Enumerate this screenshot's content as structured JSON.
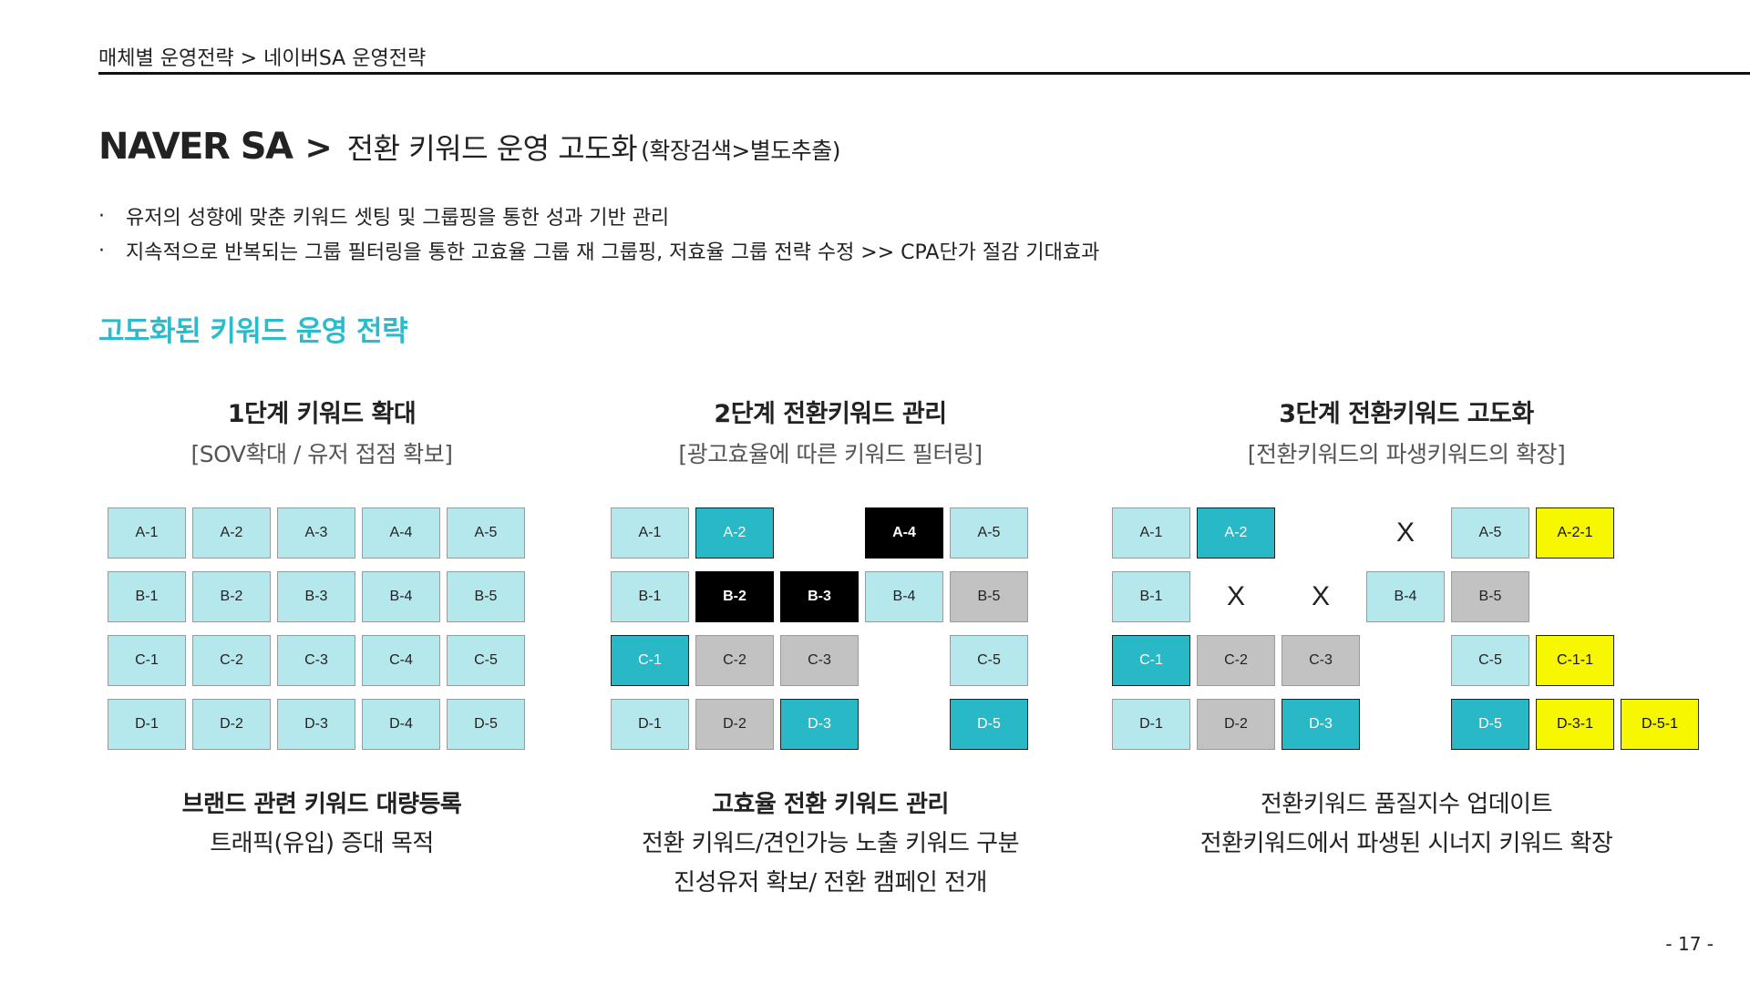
{
  "breadcrumb": "매체별 운영전략 > 네이버SA 운영전략",
  "title": {
    "main": "NAVER SA",
    "separator": ">",
    "sub": "전환 키워드 운영 고도화",
    "paren": "(확장검색>별도추출)"
  },
  "bullets": [
    "유저의 성향에 맞춘 키워드 셋팅 및 그룹핑을 통한 성과 기반 관리",
    "지속적으로 반복되는 그룹 필터링을 통한 고효율 그룹 재 그룹핑, 저효율 그룹 전략 수정 >> CPA단가 절감 기대효과"
  ],
  "bullet_marker": "·",
  "section_heading": "고도화된 키워드 운영 전략",
  "stages": [
    {
      "title": "1단계 키워드 확대",
      "subtitle": "[SOV확대 / 유저 접점 확보]",
      "footer": [
        "브랜드 관련 키워드 대량등록",
        "트래픽(유입) 증대 목적"
      ],
      "cells": [
        {
          "label": "A-1",
          "state": "normal"
        },
        {
          "label": "A-2",
          "state": "normal"
        },
        {
          "label": "A-3",
          "state": "normal"
        },
        {
          "label": "A-4",
          "state": "normal"
        },
        {
          "label": "A-5",
          "state": "normal"
        },
        {
          "label": "B-1",
          "state": "normal"
        },
        {
          "label": "B-2",
          "state": "normal"
        },
        {
          "label": "B-3",
          "state": "normal"
        },
        {
          "label": "B-4",
          "state": "normal"
        },
        {
          "label": "B-5",
          "state": "normal"
        },
        {
          "label": "C-1",
          "state": "normal"
        },
        {
          "label": "C-2",
          "state": "normal"
        },
        {
          "label": "C-3",
          "state": "normal"
        },
        {
          "label": "C-4",
          "state": "normal"
        },
        {
          "label": "C-5",
          "state": "normal"
        },
        {
          "label": "D-1",
          "state": "normal"
        },
        {
          "label": "D-2",
          "state": "normal"
        },
        {
          "label": "D-3",
          "state": "normal"
        },
        {
          "label": "D-4",
          "state": "normal"
        },
        {
          "label": "D-5",
          "state": "normal"
        }
      ]
    },
    {
      "title": "2단계 전환키워드 관리",
      "subtitle": "[광고효율에 따른 키워드 필터링]",
      "footer": [
        "고효율 전환 키워드 관리",
        "전환 키워드/견인가능 노출 키워드 구분",
        "진성유저 확보/ 전환 캠페인 전개"
      ],
      "cells": [
        {
          "label": "A-1",
          "state": "normal"
        },
        {
          "label": "A-2",
          "state": "conversion"
        },
        {
          "label": "",
          "state": "empty"
        },
        {
          "label": "A-4",
          "state": "excluded"
        },
        {
          "label": "A-5",
          "state": "normal"
        },
        {
          "label": "B-1",
          "state": "normal"
        },
        {
          "label": "B-2",
          "state": "excluded"
        },
        {
          "label": "B-3",
          "state": "excluded"
        },
        {
          "label": "B-4",
          "state": "normal"
        },
        {
          "label": "B-5",
          "state": "low"
        },
        {
          "label": "C-1",
          "state": "conversion"
        },
        {
          "label": "C-2",
          "state": "low"
        },
        {
          "label": "C-3",
          "state": "low"
        },
        {
          "label": "",
          "state": "empty"
        },
        {
          "label": "C-5",
          "state": "normal"
        },
        {
          "label": "D-1",
          "state": "normal"
        },
        {
          "label": "D-2",
          "state": "low"
        },
        {
          "label": "D-3",
          "state": "conversion"
        },
        {
          "label": "",
          "state": "empty"
        },
        {
          "label": "D-5",
          "state": "conversion"
        }
      ]
    },
    {
      "title": "3단계 전환키워드 고도화",
      "subtitle": "[전환키워드의 파생키워드의 확장]",
      "footer": [
        "전환키워드 품질지수 업데이트",
        "전환키워드에서 파생된 시너지 키워드 확장"
      ],
      "cells": [
        {
          "label": "A-1",
          "state": "normal"
        },
        {
          "label": "A-2",
          "state": "conversion"
        },
        {
          "label": "",
          "state": "empty"
        },
        {
          "label": "X",
          "state": "removed"
        },
        {
          "label": "A-5",
          "state": "normal"
        },
        {
          "label": "A-2-1",
          "state": "derived"
        },
        {
          "label": "",
          "state": "empty"
        },
        {
          "label": "B-1",
          "state": "normal"
        },
        {
          "label": "X",
          "state": "removed"
        },
        {
          "label": "X",
          "state": "removed"
        },
        {
          "label": "B-4",
          "state": "normal"
        },
        {
          "label": "B-5",
          "state": "low"
        },
        {
          "label": "",
          "state": "empty"
        },
        {
          "label": "",
          "state": "empty"
        },
        {
          "label": "C-1",
          "state": "conversion"
        },
        {
          "label": "C-2",
          "state": "low"
        },
        {
          "label": "C-3",
          "state": "low"
        },
        {
          "label": "",
          "state": "empty"
        },
        {
          "label": "C-5",
          "state": "normal"
        },
        {
          "label": "C-1-1",
          "state": "derived"
        },
        {
          "label": "",
          "state": "empty"
        },
        {
          "label": "D-1",
          "state": "normal"
        },
        {
          "label": "D-2",
          "state": "low"
        },
        {
          "label": "D-3",
          "state": "conversion"
        },
        {
          "label": "",
          "state": "empty"
        },
        {
          "label": "D-5",
          "state": "conversion"
        },
        {
          "label": "D-3-1",
          "state": "derived"
        },
        {
          "label": "D-5-1",
          "state": "derived"
        }
      ]
    }
  ],
  "colors": {
    "accent": "#2bbccc",
    "normal": "#b5e8ec",
    "conversion": "#29b8c6",
    "excluded": "#000000",
    "low": "#c2c2c2",
    "derived": "#f7f700"
  },
  "page_number": "- 17 -"
}
